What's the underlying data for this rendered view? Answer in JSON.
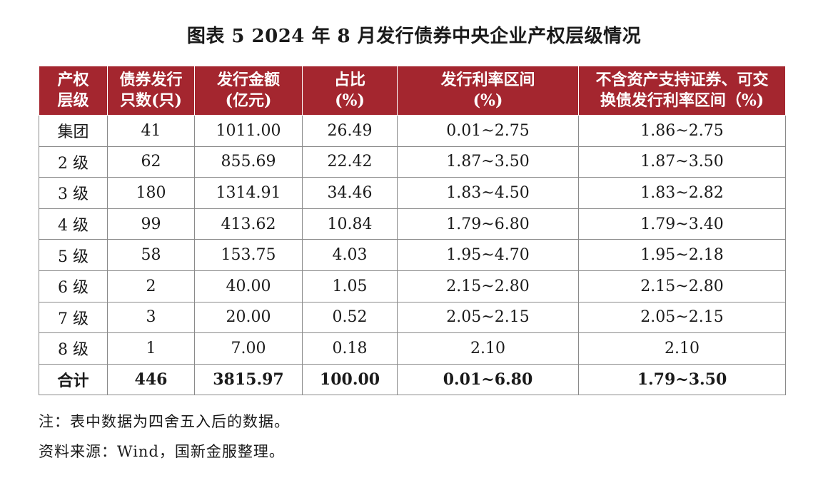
{
  "title": "图表 5  2024 年 8 月发行债券中央企业产权层级情况",
  "colors": {
    "header_bg": "#a4262f",
    "header_text": "#ffffff",
    "border": "#8a8a8a"
  },
  "table": {
    "headers": [
      [
        "产权",
        "层级"
      ],
      [
        "债券发行",
        "只数(只)"
      ],
      [
        "发行金额",
        "(亿元)"
      ],
      [
        "占比",
        "(%)"
      ],
      [
        "发行利率区间",
        "(%)"
      ],
      [
        "不含资产支持证券、可交",
        "换债发行利率区间（%)"
      ]
    ],
    "rows": [
      [
        "集团",
        "41",
        "1011.00",
        "26.49",
        "0.01~2.75",
        "1.86~2.75"
      ],
      [
        "2 级",
        "62",
        "855.69",
        "22.42",
        "1.87~3.50",
        "1.87~3.50"
      ],
      [
        "3 级",
        "180",
        "1314.91",
        "34.46",
        "1.83~4.50",
        "1.83~2.82"
      ],
      [
        "4 级",
        "99",
        "413.62",
        "10.84",
        "1.79~6.80",
        "1.79~3.40"
      ],
      [
        "5 级",
        "58",
        "153.75",
        "4.03",
        "1.95~4.70",
        "1.95~2.18"
      ],
      [
        "6 级",
        "2",
        "40.00",
        "1.05",
        "2.15~2.80",
        "2.15~2.80"
      ],
      [
        "7 级",
        "3",
        "20.00",
        "0.52",
        "2.05~2.15",
        "2.05~2.15"
      ],
      [
        "8 级",
        "1",
        "7.00",
        "0.18",
        "2.10",
        "2.10"
      ],
      [
        "合计",
        "446",
        "3815.97",
        "100.00",
        "0.01~6.80",
        "1.79~3.50"
      ]
    ]
  },
  "notes": {
    "note": "注：表中数据为四舍五入后的数据。",
    "source": "资料来源：Wind，国新金服整理。"
  }
}
